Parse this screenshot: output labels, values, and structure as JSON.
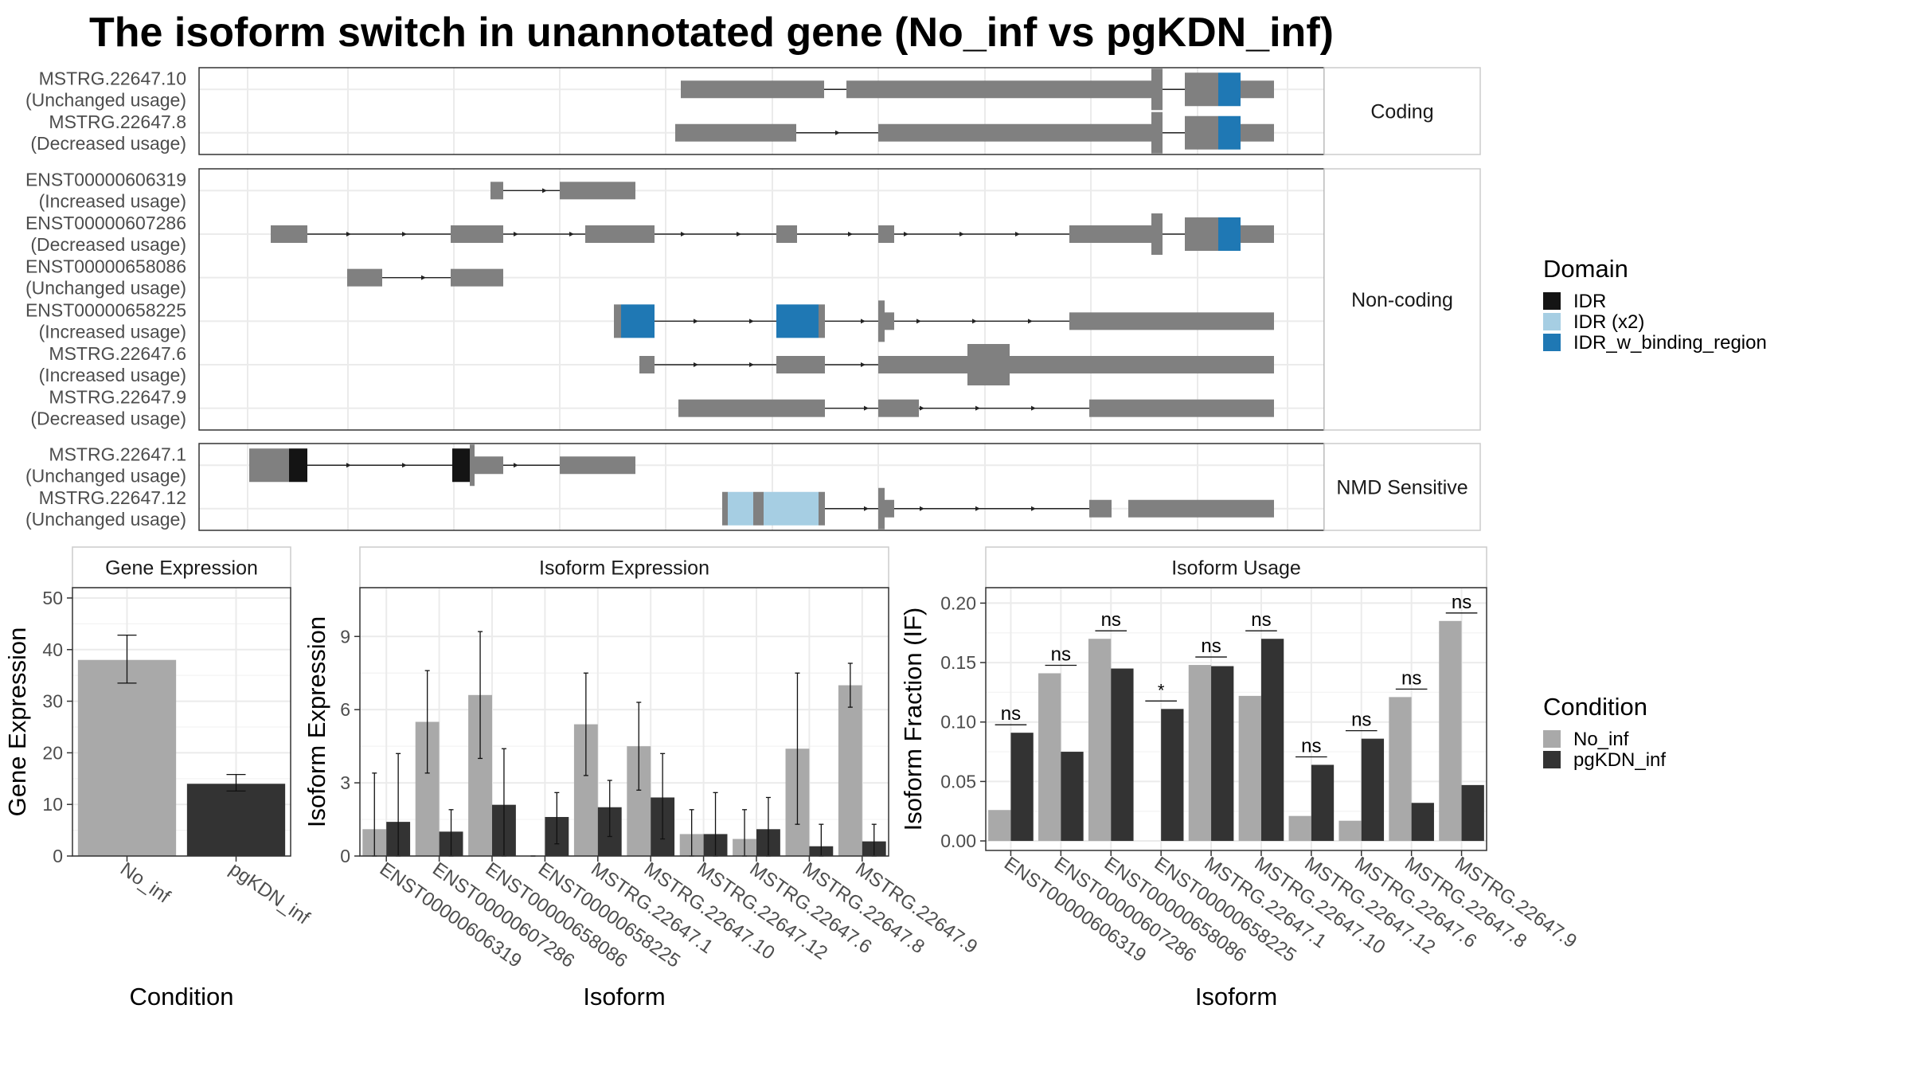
{
  "title": "The isoform switch in unannotated gene (No_inf vs pgKDN_inf)",
  "colors": {
    "no_inf": "#a9a9a9",
    "pgkdn_inf": "#333333",
    "exon": "#808080",
    "IDR": "#141414",
    "IDR (x2)": "#a6cee3",
    "IDR_w_binding_region": "#1f78b4",
    "grid": "#ebebeb",
    "panel_border": "#333333",
    "strip_border": "#cccccc"
  },
  "structure": {
    "groups": [
      {
        "label": "Coding",
        "isoforms": [
          {
            "id": "MSTRG.22647.10",
            "usage": "(Unchanged usage)"
          },
          {
            "id": "MSTRG.22647.8",
            "usage": "(Decreased usage)"
          }
        ]
      },
      {
        "label": "Non-coding",
        "isoforms": [
          {
            "id": "ENST00000606319",
            "usage": "(Increased usage)"
          },
          {
            "id": "ENST00000607286",
            "usage": "(Decreased usage)"
          },
          {
            "id": "ENST00000658086",
            "usage": "(Unchanged usage)"
          },
          {
            "id": "ENST00000658225",
            "usage": "(Increased usage)"
          },
          {
            "id": "MSTRG.22647.6",
            "usage": "(Increased usage)"
          },
          {
            "id": "MSTRG.22647.9",
            "usage": "(Decreased usage)"
          }
        ]
      },
      {
        "label": "NMD Sensitive",
        "isoforms": [
          {
            "id": "MSTRG.22647.1",
            "usage": "(Unchanged usage)"
          },
          {
            "id": "MSTRG.22647.12",
            "usage": "(Unchanged usage)"
          }
        ]
      }
    ]
  },
  "legends": {
    "domain": {
      "title": "Domain",
      "items": [
        "IDR",
        "IDR (x2)",
        "IDR_w_binding_region"
      ]
    },
    "condition": {
      "title": "Condition",
      "items": [
        "No_inf",
        "pgKDN_inf"
      ]
    }
  },
  "chart_data": [
    {
      "type": "bar",
      "panel": "Gene Expression",
      "xlabel": "Condition",
      "ylabel": "Gene Expression",
      "ylim": [
        0,
        52
      ],
      "yticks": [
        0,
        10,
        20,
        30,
        40,
        50
      ],
      "categories": [
        "No_inf",
        "pgKDN_inf"
      ],
      "values": [
        38,
        14
      ],
      "errors": [
        [
          33.5,
          42.8
        ],
        [
          12.6,
          15.8
        ]
      ]
    },
    {
      "type": "bar",
      "panel": "Isoform Expression",
      "xlabel": "Isoform",
      "ylabel": "Isoform Expression",
      "ylim": [
        0,
        11
      ],
      "yticks": [
        0,
        3,
        6,
        9
      ],
      "categories": [
        "ENST00000606319",
        "ENST00000607286",
        "ENST00000658086",
        "ENST00000658225",
        "MSTRG.22647.1",
        "MSTRG.22647.10",
        "MSTRG.22647.12",
        "MSTRG.22647.6",
        "MSTRG.22647.8",
        "MSTRG.22647.9"
      ],
      "series": [
        {
          "name": "No_inf",
          "values": [
            1.1,
            5.5,
            6.6,
            0.0,
            5.4,
            4.5,
            0.9,
            0.7,
            4.4,
            7.0
          ],
          "err_lo": [
            0.0,
            3.4,
            4.0,
            0.0,
            3.3,
            2.7,
            0.0,
            0.0,
            1.3,
            6.1
          ],
          "err_hi": [
            3.4,
            7.6,
            9.2,
            0.0,
            7.5,
            6.3,
            1.9,
            1.9,
            7.5,
            7.9
          ]
        },
        {
          "name": "pgKDN_inf",
          "values": [
            1.4,
            1.0,
            2.1,
            1.6,
            2.0,
            2.4,
            0.9,
            1.1,
            0.4,
            0.6
          ],
          "err_lo": [
            0.0,
            0.0,
            0.0,
            0.5,
            0.8,
            0.7,
            0.0,
            0.0,
            0.0,
            0.0
          ],
          "err_hi": [
            4.2,
            1.9,
            4.4,
            2.6,
            3.1,
            4.2,
            2.6,
            2.4,
            1.3,
            1.3
          ]
        }
      ]
    },
    {
      "type": "bar",
      "panel": "Isoform Usage",
      "xlabel": "Isoform",
      "ylabel": "Isoform Fraction (IF)",
      "ylim": [
        -0.008,
        0.213
      ],
      "yticks": [
        0.0,
        0.05,
        0.1,
        0.15,
        0.2
      ],
      "ytick_labels": [
        "0.00",
        "0.05",
        "0.10",
        "0.15",
        "0.20"
      ],
      "categories": [
        "ENST00000606319",
        "ENST00000607286",
        "ENST00000658086",
        "ENST00000658225",
        "MSTRG.22647.1",
        "MSTRG.22647.10",
        "MSTRG.22647.12",
        "MSTRG.22647.6",
        "MSTRG.22647.8",
        "MSTRG.22647.9"
      ],
      "series": [
        {
          "name": "No_inf",
          "values": [
            0.026,
            0.141,
            0.17,
            0.0,
            0.148,
            0.122,
            0.021,
            0.017,
            0.121,
            0.185
          ]
        },
        {
          "name": "pgKDN_inf",
          "values": [
            0.091,
            0.075,
            0.145,
            0.111,
            0.147,
            0.17,
            0.064,
            0.086,
            0.032,
            0.047
          ]
        }
      ],
      "significance": [
        "ns",
        "ns",
        "ns",
        "*",
        "ns",
        "ns",
        "ns",
        "ns",
        "ns",
        "ns"
      ]
    }
  ]
}
